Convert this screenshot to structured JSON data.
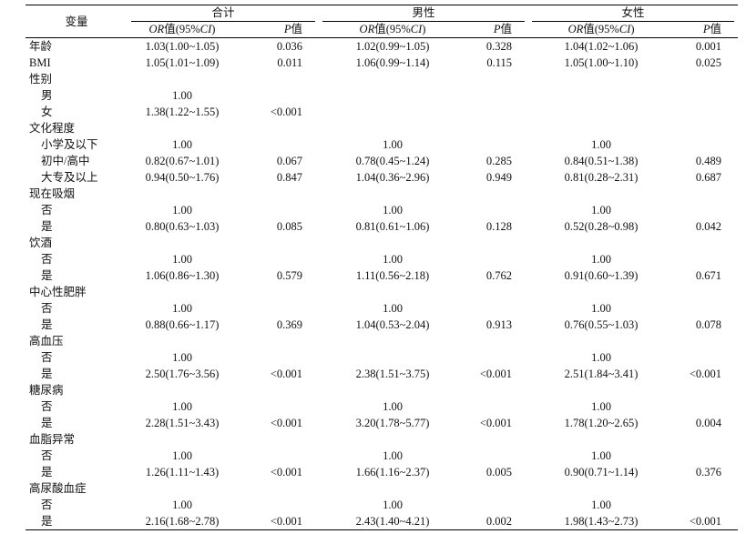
{
  "header": {
    "variable": "变量",
    "groups": [
      "合计",
      "男性",
      "女性"
    ],
    "or_label": [
      "OR",
      "值(95%",
      "CI",
      ")"
    ],
    "p_label": [
      "P",
      "值"
    ]
  },
  "rows": [
    {
      "label": "年龄",
      "cells": [
        "1.03(1.00~1.05)",
        "0.036",
        "1.02(0.99~1.05)",
        "0.328",
        "1.04(1.02~1.06)",
        "0.001"
      ]
    },
    {
      "label": "BMI",
      "cells": [
        "1.05(1.01~1.09)",
        "0.011",
        "1.06(0.99~1.14)",
        "0.115",
        "1.05(1.00~1.10)",
        "0.025"
      ]
    },
    {
      "label": "性别",
      "items": [
        {
          "label": "男",
          "cells": [
            "1.00",
            null,
            null,
            null,
            null,
            null
          ]
        },
        {
          "label": "女",
          "cells": [
            "1.38(1.22~1.55)",
            "<0.001",
            null,
            null,
            null,
            null
          ]
        }
      ]
    },
    {
      "label": "文化程度",
      "items": [
        {
          "label": "小学及以下",
          "cells": [
            "1.00",
            null,
            "1.00",
            null,
            "1.00",
            null
          ]
        },
        {
          "label": "初中/高中",
          "cells": [
            "0.82(0.67~1.01)",
            "0.067",
            "0.78(0.45~1.24)",
            "0.285",
            "0.84(0.51~1.38)",
            "0.489"
          ]
        },
        {
          "label": "大专及以上",
          "cells": [
            "0.94(0.50~1.76)",
            "0.847",
            "1.04(0.36~2.96)",
            "0.949",
            "0.81(0.28~2.31)",
            "0.687"
          ]
        }
      ]
    },
    {
      "label": "现在吸烟",
      "items": [
        {
          "label": "否",
          "cells": [
            "1.00",
            null,
            "1.00",
            null,
            "1.00",
            null
          ]
        },
        {
          "label": "是",
          "cells": [
            "0.80(0.63~1.03)",
            "0.085",
            "0.81(0.61~1.06)",
            "0.128",
            "0.52(0.28~0.98)",
            "0.042"
          ]
        }
      ]
    },
    {
      "label": "饮酒",
      "items": [
        {
          "label": "否",
          "cells": [
            "1.00",
            null,
            "1.00",
            null,
            "1.00",
            null
          ]
        },
        {
          "label": "是",
          "cells": [
            "1.06(0.86~1.30)",
            "0.579",
            "1.11(0.56~2.18)",
            "0.762",
            "0.91(0.60~1.39)",
            "0.671"
          ]
        }
      ]
    },
    {
      "label": "中心性肥胖",
      "items": [
        {
          "label": "否",
          "cells": [
            "1.00",
            null,
            "1.00",
            null,
            "1.00",
            null
          ]
        },
        {
          "label": "是",
          "cells": [
            "0.88(0.66~1.17)",
            "0.369",
            "1.04(0.53~2.04)",
            "0.913",
            "0.76(0.55~1.03)",
            "0.078"
          ]
        }
      ]
    },
    {
      "label": "高血压",
      "items": [
        {
          "label": "否",
          "cells": [
            "1.00",
            null,
            null,
            null,
            "1.00",
            null
          ]
        },
        {
          "label": "是",
          "cells": [
            "2.50(1.76~3.56)",
            "<0.001",
            "2.38(1.51~3.75)",
            "<0.001",
            "2.51(1.84~3.41)",
            "<0.001"
          ]
        }
      ]
    },
    {
      "label": "糖尿病",
      "items": [
        {
          "label": "否",
          "cells": [
            "1.00",
            null,
            "1.00",
            null,
            "1.00",
            null
          ]
        },
        {
          "label": "是",
          "cells": [
            "2.28(1.51~3.43)",
            "<0.001",
            "3.20(1.78~5.77)",
            "<0.001",
            "1.78(1.20~2.65)",
            "0.004"
          ]
        }
      ]
    },
    {
      "label": "血脂异常",
      "items": [
        {
          "label": "否",
          "cells": [
            "1.00",
            null,
            "1.00",
            null,
            "1.00",
            null
          ]
        },
        {
          "label": "是",
          "cells": [
            "1.26(1.11~1.43)",
            "<0.001",
            "1.66(1.16~2.37)",
            "0.005",
            "0.90(0.71~1.14)",
            "0.376"
          ]
        }
      ]
    },
    {
      "label": "高尿酸血症",
      "items": [
        {
          "label": "否",
          "cells": [
            "1.00",
            null,
            "1.00",
            null,
            "1.00",
            null
          ]
        },
        {
          "label": "是",
          "cells": [
            "2.16(1.68~2.78)",
            "<0.001",
            "2.43(1.40~4.21)",
            "0.002",
            "1.98(1.43~2.73)",
            "<0.001"
          ]
        }
      ]
    }
  ]
}
